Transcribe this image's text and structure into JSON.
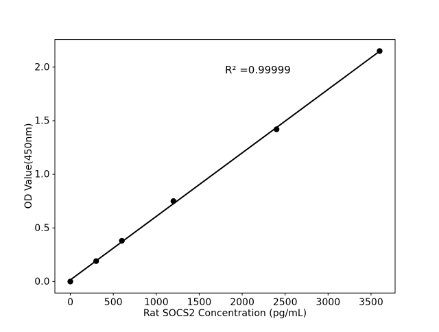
{
  "figure": {
    "background": "#ffffff",
    "foreground": "#000000"
  },
  "chart_data": {
    "type": "scatter",
    "title": "",
    "xlabel": "Rat SOCS2 Concentration (pg/mL)",
    "ylabel": "OD Value(450nm)",
    "annotation": "R² =0.99999",
    "r_squared": 0.99999,
    "x": [
      0,
      300,
      600,
      1200,
      2400,
      3600
    ],
    "y": [
      0.0,
      0.19,
      0.38,
      0.75,
      1.42,
      2.15
    ],
    "fit_line": {
      "x": [
        0,
        3600
      ],
      "y": [
        0.015,
        2.148
      ]
    },
    "x_ticks": [
      "0",
      "500",
      "1000",
      "1500",
      "2000",
      "2500",
      "3000",
      "3500"
    ],
    "y_ticks": [
      "0.0",
      "0.5",
      "1.0",
      "1.5",
      "2.0"
    ],
    "xlim": [
      -180,
      3780
    ],
    "ylim": [
      -0.1075,
      2.2575
    ],
    "grid": false,
    "legend": null,
    "marker": "circle",
    "marker_color": "#000000",
    "line_color": "#000000"
  }
}
